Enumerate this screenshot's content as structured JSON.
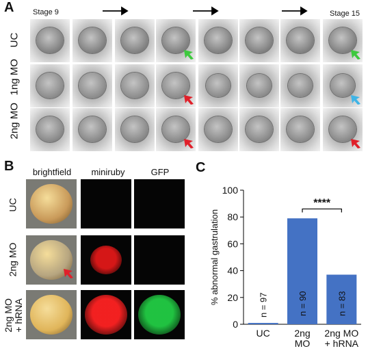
{
  "panel_a": {
    "letter": "A",
    "stage_start": "Stage 9",
    "stage_end": "Stage 15",
    "rows": [
      {
        "label": "UC"
      },
      {
        "label": "1ng MO"
      },
      {
        "label": "2ng MO"
      }
    ]
  },
  "panel_b": {
    "letter": "B",
    "columns": [
      "brightfield",
      "miniruby",
      "GFP"
    ],
    "rows": [
      {
        "label": "UC"
      },
      {
        "label": "2ng MO"
      },
      {
        "label": "2ng MO + hRNA"
      }
    ]
  },
  "panel_c": {
    "letter": "C",
    "significance": "****"
  },
  "colors": {
    "bar": "#4472c4",
    "arrow_red": "#e0202a",
    "arrow_green": "#3ec93e",
    "arrow_blue": "#3fb4e6"
  },
  "chart_data": {
    "type": "bar",
    "categories": [
      "UC",
      "2ng MO",
      "2ng MO + hRNA"
    ],
    "category_lines": [
      [
        "UC"
      ],
      [
        "2ng",
        "MO"
      ],
      [
        "2ng MO",
        "+ hRNA"
      ]
    ],
    "values": [
      1,
      79,
      37
    ],
    "n_labels": [
      "n = 97",
      "n = 90",
      "n = 83"
    ],
    "ylabel": "% abnormal gastrulation",
    "ylim": [
      0,
      100
    ],
    "yticks": [
      0,
      20,
      40,
      60,
      80,
      100
    ],
    "grid": false
  }
}
